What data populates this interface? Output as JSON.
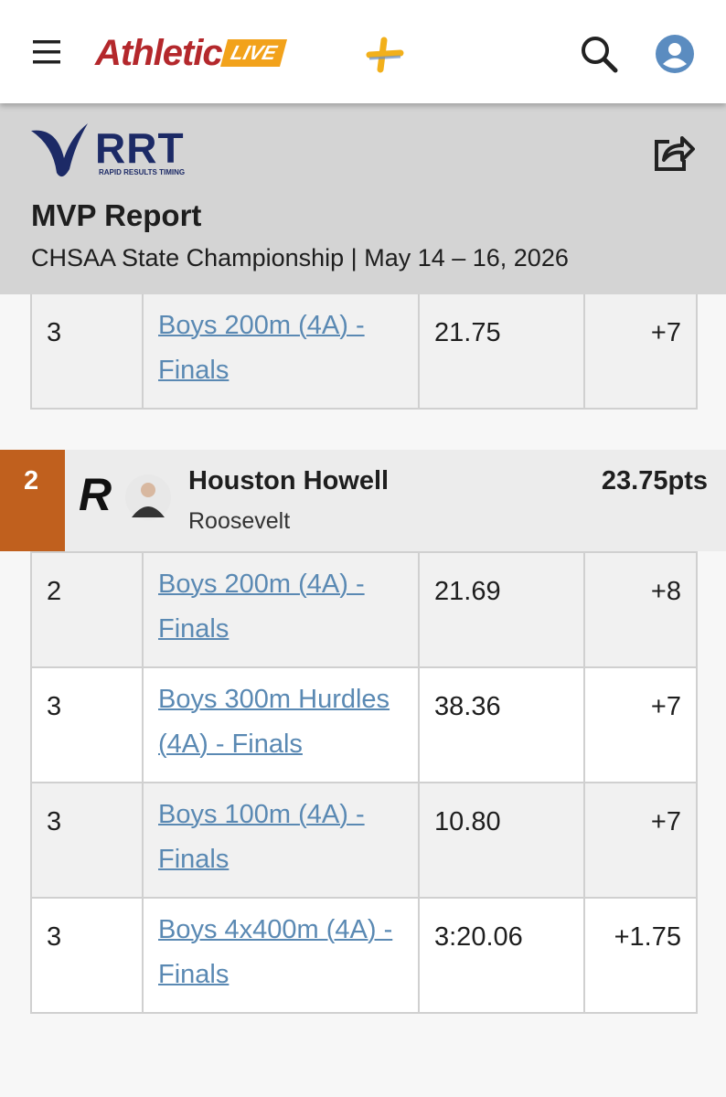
{
  "header": {
    "logo_main": "Athletic",
    "logo_badge": "LIVE"
  },
  "banner": {
    "brand": "RRT",
    "brand_tagline": "RAPID RESULTS TIMING",
    "title": "MVP Report",
    "subtitle": "CHSAA State Championship | May 14 – 16, 2026"
  },
  "previous_table": {
    "rows": [
      [
        "3",
        "Boys 200m (4A) - Finals",
        "21.75",
        "+7"
      ]
    ]
  },
  "athlete": {
    "rank": "2",
    "team_logo": "R",
    "name": "Houston Howell",
    "team": "Roosevelt",
    "points": "23.75pts"
  },
  "table": {
    "rows": [
      [
        "2",
        "Boys 200m (4A) - Finals",
        "21.69",
        "+8"
      ],
      [
        "3",
        "Boys 300m Hurdles (4A) - Finals",
        "38.36",
        "+7"
      ],
      [
        "3",
        "Boys 100m (4A) - Finals",
        "10.80",
        "+7"
      ],
      [
        "3",
        "Boys 4x400m (4A) - Finals",
        "3:20.06",
        "+1.75"
      ]
    ]
  }
}
